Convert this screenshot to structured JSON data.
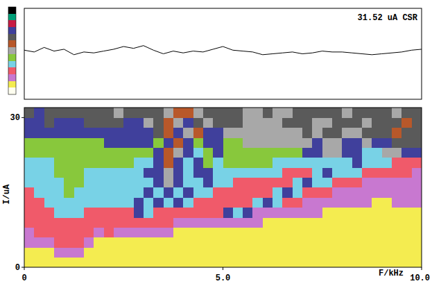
{
  "chart_data": [
    {
      "type": "line",
      "annotation": "31.52 uA CSR",
      "color": "#000000",
      "tick_labels": false,
      "xlim": [
        0,
        10
      ],
      "ylim": [
        0,
        100
      ],
      "x": [
        0,
        0.25,
        0.5,
        0.75,
        1,
        1.25,
        1.5,
        1.75,
        2,
        2.25,
        2.5,
        2.75,
        3,
        3.25,
        3.5,
        3.75,
        4,
        4.25,
        4.5,
        4.75,
        5,
        5.25,
        5.5,
        5.75,
        6,
        6.25,
        6.5,
        6.75,
        7,
        7.25,
        7.5,
        7.75,
        8,
        8.25,
        8.5,
        8.75,
        9,
        9.25,
        9.5,
        9.75,
        10
      ],
      "values": [
        54,
        52,
        57,
        53,
        55,
        49,
        52,
        51,
        53,
        55,
        58,
        56,
        59,
        54,
        50,
        53,
        51,
        53,
        52,
        55,
        58,
        54,
        53,
        52,
        49,
        50,
        51,
        52,
        50,
        51,
        53,
        52,
        52,
        51,
        50,
        49,
        50,
        51,
        52,
        54,
        55
      ]
    },
    {
      "type": "heatmap",
      "x_label": "F/kHz",
      "y_label": "I/uA",
      "xlim": [
        0,
        10
      ],
      "ylim": [
        0,
        32
      ],
      "xticks": [
        0,
        {
          "value": 5,
          "label": "5.0"
        },
        {
          "value": 10,
          "label": "10.0"
        }
      ],
      "yticks": [
        0,
        30
      ],
      "color_levels": [
        "#fffff0",
        "#f4ec50",
        "#c878d0",
        "#f05a6a",
        "#78d2e6",
        "#88c83c",
        "#a8a8a8",
        "#b8582a",
        "#5a5a5a",
        "#40409c",
        "#c81c44",
        "#00a078",
        "#000000"
      ],
      "cells": [
        [
          1,
          1,
          1,
          1,
          1,
          1,
          1,
          1,
          1,
          1,
          1,
          1,
          1,
          1,
          1,
          1,
          1,
          1,
          1,
          1,
          1,
          1,
          1,
          1,
          1,
          1,
          1,
          1,
          1,
          1,
          1,
          1,
          1,
          1,
          1,
          1,
          1,
          1,
          1,
          1
        ],
        [
          1,
          1,
          1,
          2,
          2,
          2,
          1,
          1,
          1,
          1,
          1,
          1,
          1,
          1,
          1,
          1,
          1,
          1,
          1,
          1,
          1,
          1,
          1,
          1,
          1,
          1,
          1,
          1,
          1,
          1,
          1,
          1,
          1,
          1,
          1,
          1,
          1,
          1,
          1,
          1
        ],
        [
          2,
          2,
          2,
          3,
          3,
          3,
          2,
          1,
          1,
          1,
          1,
          1,
          1,
          1,
          1,
          1,
          1,
          1,
          1,
          1,
          1,
          1,
          1,
          1,
          1,
          1,
          1,
          1,
          1,
          1,
          1,
          1,
          1,
          1,
          1,
          1,
          1,
          1,
          1,
          1
        ],
        [
          2,
          3,
          3,
          3,
          3,
          3,
          3,
          2,
          3,
          2,
          2,
          2,
          2,
          2,
          2,
          1,
          1,
          1,
          1,
          1,
          1,
          1,
          1,
          1,
          1,
          1,
          1,
          1,
          1,
          1,
          1,
          1,
          1,
          1,
          1,
          1,
          1,
          1,
          1,
          1
        ],
        [
          3,
          3,
          3,
          3,
          3,
          3,
          3,
          3,
          3,
          3,
          3,
          3,
          3,
          3,
          3,
          2,
          2,
          2,
          2,
          2,
          2,
          2,
          2,
          2,
          1,
          1,
          1,
          1,
          1,
          1,
          1,
          1,
          1,
          1,
          1,
          1,
          1,
          1,
          1,
          1
        ],
        [
          3,
          3,
          3,
          4,
          4,
          4,
          3,
          3,
          3,
          3,
          3,
          9,
          4,
          3,
          3,
          3,
          3,
          3,
          3,
          3,
          9,
          4,
          9,
          2,
          2,
          2,
          2,
          2,
          2,
          2,
          1,
          1,
          1,
          1,
          1,
          1,
          1,
          1,
          1,
          1
        ],
        [
          3,
          3,
          4,
          4,
          4,
          4,
          4,
          4,
          4,
          4,
          4,
          9,
          4,
          9,
          4,
          9,
          4,
          3,
          3,
          3,
          3,
          3,
          3,
          4,
          9,
          4,
          3,
          3,
          2,
          2,
          2,
          2,
          2,
          2,
          2,
          1,
          1,
          2,
          2,
          2
        ],
        [
          3,
          4,
          4,
          4,
          5,
          4,
          4,
          4,
          4,
          4,
          4,
          4,
          9,
          4,
          9,
          4,
          9,
          4,
          4,
          3,
          3,
          3,
          3,
          3,
          3,
          4,
          9,
          4,
          3,
          3,
          3,
          2,
          2,
          2,
          2,
          2,
          2,
          2,
          2,
          2
        ],
        [
          4,
          4,
          4,
          4,
          5,
          5,
          4,
          4,
          4,
          4,
          4,
          4,
          4,
          9,
          6,
          9,
          4,
          4,
          9,
          4,
          4,
          3,
          3,
          3,
          3,
          3,
          3,
          4,
          9,
          4,
          4,
          3,
          3,
          3,
          2,
          2,
          2,
          2,
          2,
          2
        ],
        [
          4,
          4,
          4,
          5,
          5,
          5,
          4,
          4,
          4,
          4,
          4,
          4,
          9,
          9,
          6,
          9,
          4,
          9,
          9,
          4,
          4,
          4,
          4,
          4,
          4,
          4,
          3,
          3,
          3,
          4,
          9,
          4,
          4,
          4,
          3,
          3,
          3,
          3,
          3,
          2
        ],
        [
          4,
          4,
          4,
          5,
          5,
          5,
          5,
          5,
          5,
          5,
          5,
          4,
          4,
          9,
          7,
          9,
          4,
          9,
          5,
          4,
          5,
          5,
          5,
          5,
          5,
          4,
          4,
          4,
          4,
          4,
          4,
          4,
          4,
          9,
          4,
          4,
          4,
          3,
          3,
          3
        ],
        [
          5,
          5,
          5,
          5,
          5,
          5,
          5,
          5,
          5,
          5,
          5,
          5,
          5,
          9,
          7,
          6,
          9,
          4,
          5,
          9,
          5,
          5,
          5,
          5,
          5,
          5,
          5,
          5,
          9,
          9,
          6,
          6,
          9,
          9,
          4,
          4,
          6,
          6,
          9,
          9
        ],
        [
          5,
          5,
          5,
          5,
          5,
          5,
          5,
          5,
          9,
          9,
          9,
          9,
          9,
          5,
          9,
          7,
          9,
          5,
          9,
          9,
          5,
          5,
          6,
          6,
          6,
          6,
          6,
          6,
          6,
          9,
          6,
          6,
          9,
          9,
          6,
          9,
          9,
          8,
          8,
          8
        ],
        [
          9,
          9,
          9,
          9,
          9,
          9,
          9,
          9,
          9,
          9,
          9,
          9,
          9,
          8,
          7,
          9,
          6,
          7,
          9,
          9,
          6,
          6,
          6,
          6,
          6,
          6,
          6,
          6,
          8,
          6,
          8,
          8,
          6,
          6,
          8,
          8,
          8,
          7,
          8,
          8
        ],
        [
          9,
          9,
          8,
          9,
          9,
          9,
          8,
          8,
          8,
          8,
          9,
          9,
          6,
          8,
          7,
          6,
          9,
          8,
          6,
          8,
          8,
          8,
          6,
          6,
          6,
          6,
          8,
          8,
          8,
          6,
          6,
          8,
          8,
          8,
          6,
          8,
          8,
          8,
          7,
          8
        ],
        [
          8,
          9,
          8,
          8,
          8,
          8,
          8,
          8,
          8,
          6,
          8,
          8,
          8,
          8,
          6,
          7,
          7,
          6,
          8,
          8,
          8,
          8,
          6,
          6,
          8,
          6,
          6,
          8,
          8,
          8,
          8,
          8,
          6,
          8,
          8,
          8,
          8,
          6,
          8,
          8
        ]
      ]
    }
  ]
}
